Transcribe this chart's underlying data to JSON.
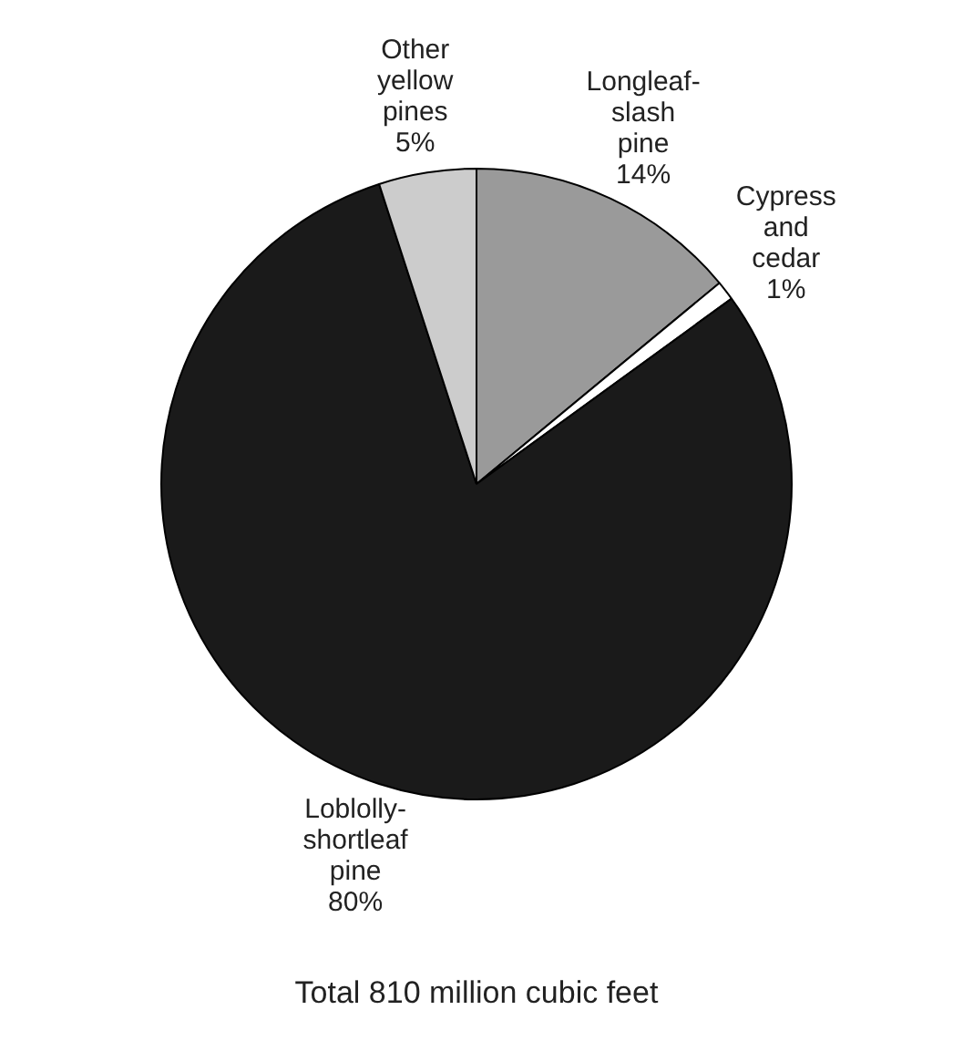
{
  "chart_data": {
    "type": "pie",
    "categories": [
      "Longleaf-slash pine",
      "Cypress and cedar",
      "Loblolly-shortleaf pine",
      "Other yellow pines"
    ],
    "values": [
      14,
      1,
      80,
      5
    ],
    "value_labels": [
      "14%",
      "1%",
      "80%",
      "5%"
    ],
    "colors": [
      "#9a9a9a",
      "#ffffff",
      "#1a1a1a",
      "#cccccc"
    ],
    "legend": false,
    "annotations": [
      "Total 810 million cubic feet"
    ]
  }
}
